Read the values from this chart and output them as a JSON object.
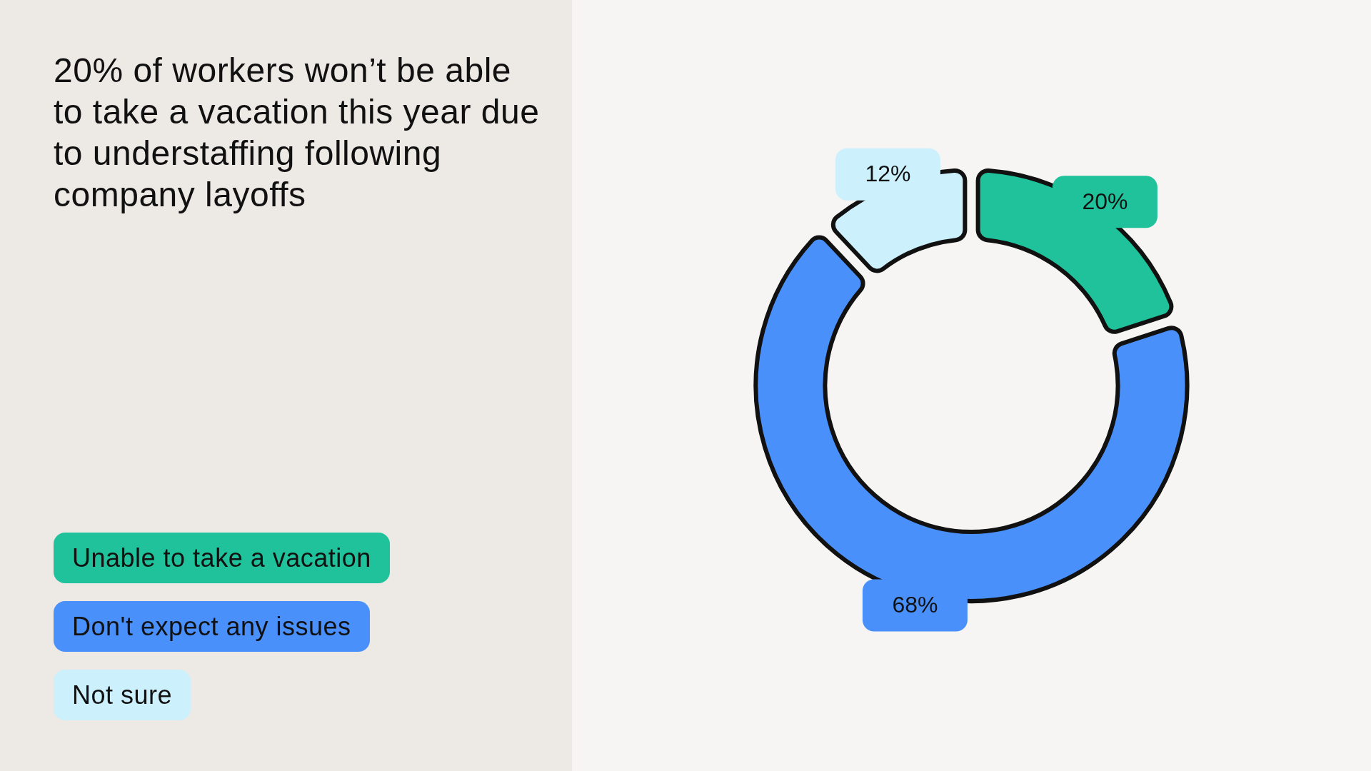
{
  "chart_data": {
    "type": "donut",
    "title": "20% of workers won’t be able to take a vacation this year due to understaffing following company layoffs",
    "categories": [
      "Unable to take a vacation",
      "Don't expect any issues",
      "Not sure"
    ],
    "values": [
      20,
      68,
      12
    ],
    "colors": [
      "#1fc29a",
      "#4a90fb",
      "#cdf0fd"
    ],
    "value_labels": [
      "20%",
      "68%",
      "12%"
    ],
    "legend": "bottom left"
  }
}
